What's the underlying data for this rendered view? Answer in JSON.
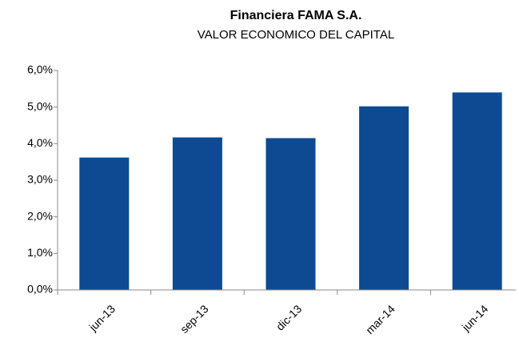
{
  "chart_data": {
    "type": "bar",
    "title": "Financiera FAMA S.A.",
    "subtitle": "VALOR ECONOMICO DEL CAPITAL",
    "categories": [
      "jun-13",
      "sep-13",
      "dic-13",
      "mar-14",
      "jun-14"
    ],
    "values": [
      3.62,
      4.17,
      4.15,
      5.02,
      5.4
    ],
    "color": "#0d4a91",
    "ylim": [
      0,
      6
    ],
    "yticks": [
      {
        "value": 0,
        "label": "0,0%"
      },
      {
        "value": 1,
        "label": "1,0%"
      },
      {
        "value": 2,
        "label": "2,0%"
      },
      {
        "value": 3,
        "label": "3,0%"
      },
      {
        "value": 4,
        "label": "4,0%"
      },
      {
        "value": 5,
        "label": "5,0%"
      },
      {
        "value": 6,
        "label": "6,0%"
      }
    ],
    "grid": false
  }
}
